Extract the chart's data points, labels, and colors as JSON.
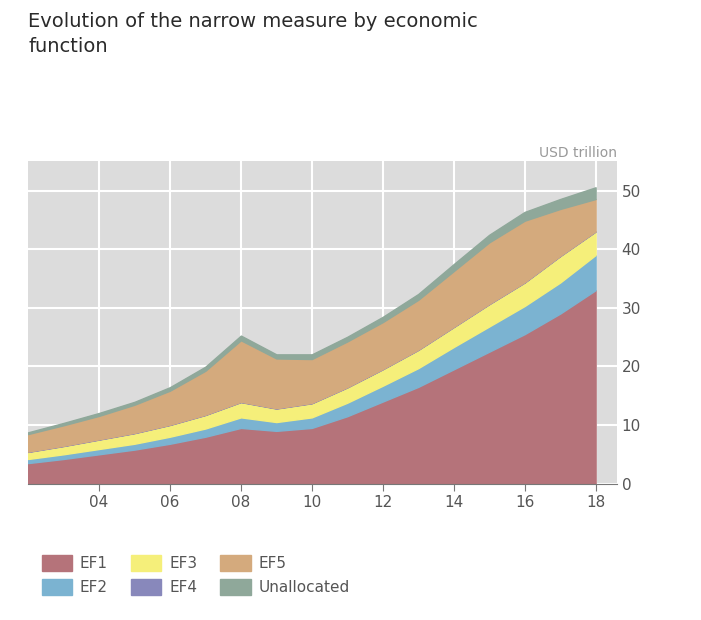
{
  "title": "Evolution of the narrow measure by economic\nfunction",
  "unit_label": "USD trillion",
  "years": [
    2002,
    2003,
    2004,
    2005,
    2006,
    2007,
    2008,
    2009,
    2010,
    2011,
    2012,
    2013,
    2014,
    2015,
    2016,
    2017,
    2018
  ],
  "EF1": [
    3.5,
    4.2,
    5.0,
    5.8,
    6.8,
    8.0,
    9.5,
    9.0,
    9.5,
    11.5,
    14.0,
    16.5,
    19.5,
    22.5,
    25.5,
    29.0,
    33.0
  ],
  "EF2": [
    0.7,
    0.8,
    0.9,
    1.0,
    1.2,
    1.4,
    1.8,
    1.5,
    1.8,
    2.3,
    2.7,
    3.2,
    3.8,
    4.3,
    4.8,
    5.3,
    6.0
  ],
  "EF3": [
    1.2,
    1.4,
    1.6,
    1.8,
    2.0,
    2.3,
    2.6,
    2.3,
    2.4,
    2.6,
    2.8,
    3.1,
    3.4,
    3.8,
    4.0,
    4.5,
    4.0
  ],
  "EF4": [
    0.05,
    0.05,
    0.05,
    0.05,
    0.05,
    0.05,
    0.05,
    0.05,
    0.05,
    0.05,
    0.05,
    0.05,
    0.05,
    0.05,
    0.05,
    0.05,
    0.05
  ],
  "EF5": [
    3.0,
    3.5,
    4.0,
    4.8,
    5.8,
    7.5,
    10.5,
    8.5,
    7.5,
    7.8,
    8.0,
    8.5,
    9.5,
    10.5,
    10.5,
    8.0,
    5.5
  ],
  "Unallocated": [
    0.3,
    0.4,
    0.5,
    0.5,
    0.6,
    0.7,
    0.8,
    0.7,
    0.8,
    0.8,
    0.9,
    1.0,
    1.2,
    1.3,
    1.5,
    1.7,
    2.0
  ],
  "colors": {
    "EF1": "#b5737a",
    "EF2": "#7bb3d1",
    "EF3": "#f5ef7a",
    "EF4": "#8888bb",
    "EF5": "#d4aa7d",
    "Unallocated": "#8fa89a"
  },
  "ylim": [
    0,
    55
  ],
  "yticks": [
    0,
    10,
    20,
    30,
    40,
    50
  ],
  "xtick_labels": [
    "04",
    "06",
    "08",
    "10",
    "12",
    "14",
    "16",
    "18"
  ],
  "xtick_positions": [
    2004,
    2006,
    2008,
    2010,
    2012,
    2014,
    2016,
    2018
  ],
  "background_color": "#dcdcdc",
  "fig_background": "#ffffff",
  "title_color": "#2a2a2a",
  "unit_color": "#999999",
  "tick_color": "#555555",
  "grid_color": "#ffffff",
  "spine_color": "#777777"
}
